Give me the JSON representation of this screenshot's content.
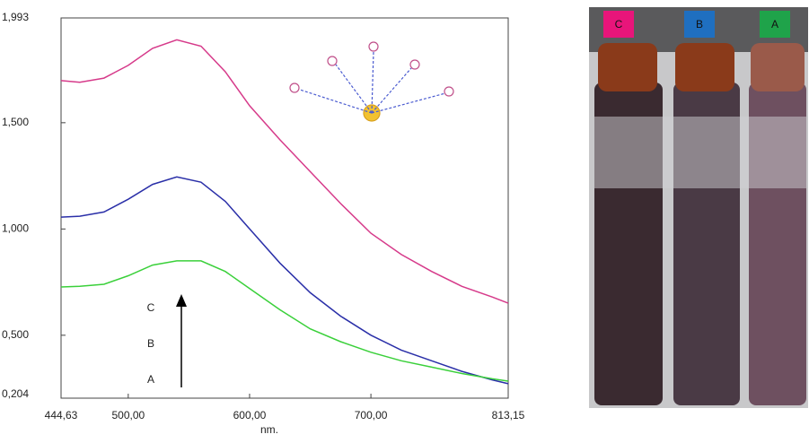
{
  "chart_data": {
    "type": "line",
    "x_label": "nm.",
    "x": [
      444.63,
      460,
      480,
      500,
      520,
      540,
      560,
      580,
      600,
      625,
      650,
      675,
      700,
      725,
      750,
      775,
      800,
      813.15
    ],
    "series": [
      {
        "name": "C",
        "color": "#d63a8a",
        "values": [
          1.698,
          1.69,
          1.71,
          1.77,
          1.85,
          1.89,
          1.86,
          1.74,
          1.58,
          1.42,
          1.27,
          1.12,
          0.98,
          0.88,
          0.8,
          0.73,
          0.68,
          0.651
        ]
      },
      {
        "name": "B",
        "color": "#2a2fa8",
        "values": [
          1.056,
          1.06,
          1.08,
          1.14,
          1.21,
          1.245,
          1.22,
          1.13,
          1.0,
          0.84,
          0.7,
          0.59,
          0.5,
          0.43,
          0.38,
          0.33,
          0.29,
          0.272
        ]
      },
      {
        "name": "A",
        "color": "#3ad03a",
        "values": [
          0.727,
          0.73,
          0.74,
          0.78,
          0.83,
          0.85,
          0.85,
          0.8,
          0.72,
          0.62,
          0.53,
          0.47,
          0.42,
          0.38,
          0.35,
          0.32,
          0.295,
          0.284
        ]
      }
    ],
    "xlim": [
      444.63,
      813.15
    ],
    "xticks": [
      {
        "value": 444.63,
        "label": "444,63"
      },
      {
        "value": 500,
        "label": "500,00"
      },
      {
        "value": 600,
        "label": "600,00"
      },
      {
        "value": 700,
        "label": "700,00"
      },
      {
        "value": 813.15,
        "label": "813,15"
      }
    ],
    "ylim": [
      0.204,
      1.993
    ],
    "yticks": [
      {
        "value": 0.204,
        "label": "0,204"
      },
      {
        "value": 0.5,
        "label": "0,500"
      },
      {
        "value": 1,
        "label": "1,000"
      },
      {
        "value": 1.5,
        "label": "1,500"
      },
      {
        "value": 1.993,
        "label": "1,993"
      }
    ],
    "annotations": [
      "C",
      "B",
      "A"
    ]
  },
  "photo_labels": [
    {
      "text": "C",
      "color": "#e8157a"
    },
    {
      "text": "B",
      "color": "#1f6fc0"
    },
    {
      "text": "A",
      "color": "#1fa34a"
    }
  ]
}
